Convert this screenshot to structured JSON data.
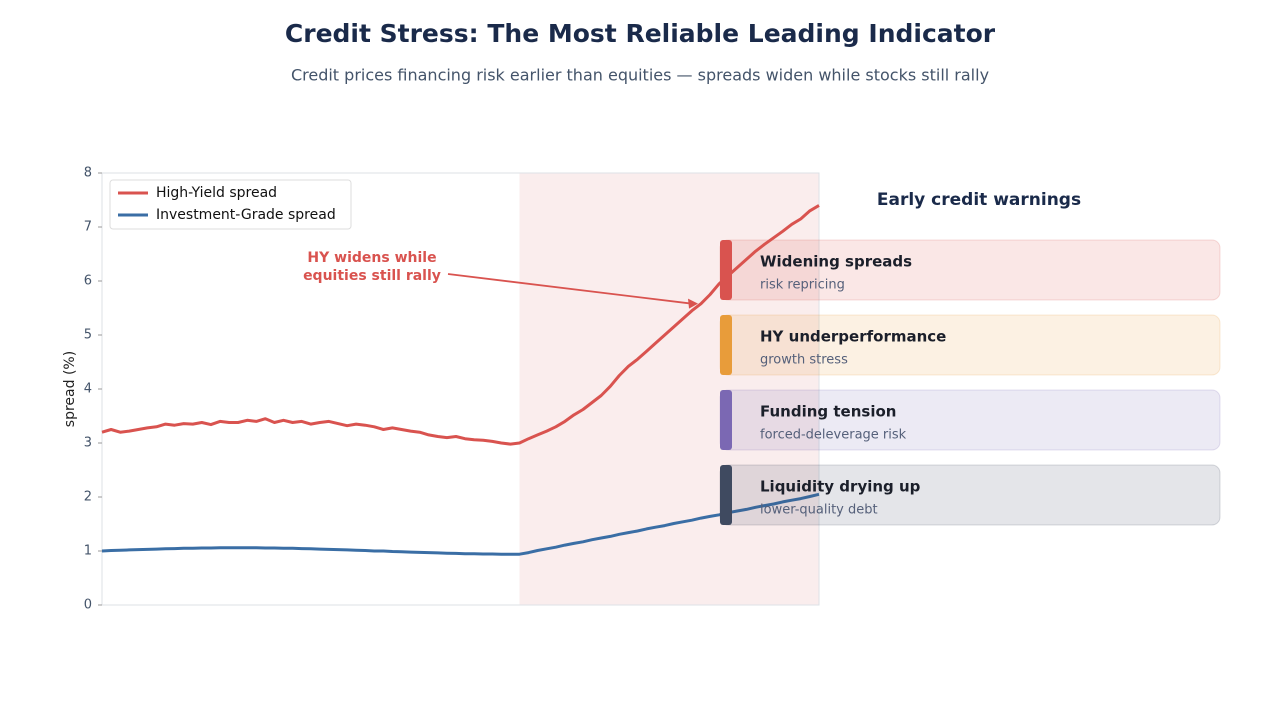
{
  "chart_data": {
    "type": "line",
    "title": "Credit Stress: The Most Reliable Leading Indicator",
    "subtitle": "Credit prices financing risk earlier than equities — spreads widen while stocks still rally",
    "ylabel": "spread (%)",
    "ylim": [
      0,
      8
    ],
    "yticks": [
      0,
      1,
      2,
      3,
      4,
      5,
      6,
      7,
      8
    ],
    "highlight": {
      "from": 46,
      "to": 79,
      "color": "#f3d6d8"
    },
    "annotation": {
      "lines": [
        "HY widens while",
        "equities still rally"
      ],
      "color": "#d9534f"
    },
    "legend": "upper left",
    "series": [
      {
        "name": "High-Yield spread",
        "color": "#d9534f",
        "values": [
          3.2,
          3.25,
          3.2,
          3.22,
          3.25,
          3.28,
          3.3,
          3.35,
          3.33,
          3.36,
          3.35,
          3.38,
          3.34,
          3.4,
          3.38,
          3.38,
          3.42,
          3.4,
          3.45,
          3.38,
          3.42,
          3.38,
          3.4,
          3.35,
          3.38,
          3.4,
          3.36,
          3.32,
          3.35,
          3.33,
          3.3,
          3.25,
          3.28,
          3.25,
          3.22,
          3.2,
          3.15,
          3.12,
          3.1,
          3.12,
          3.08,
          3.06,
          3.05,
          3.03,
          3.0,
          2.98,
          3.0,
          3.08,
          3.15,
          3.22,
          3.3,
          3.4,
          3.52,
          3.62,
          3.75,
          3.88,
          4.05,
          4.25,
          4.42,
          4.55,
          4.7,
          4.85,
          5.0,
          5.15,
          5.3,
          5.45,
          5.58,
          5.75,
          5.95,
          6.1,
          6.25,
          6.4,
          6.55,
          6.68,
          6.8,
          6.92,
          7.05,
          7.15,
          7.3,
          7.4
        ]
      },
      {
        "name": "Investment-Grade spread",
        "color": "#3a6ea5",
        "values": [
          1.0,
          1.01,
          1.015,
          1.02,
          1.025,
          1.03,
          1.035,
          1.04,
          1.045,
          1.05,
          1.05,
          1.055,
          1.055,
          1.06,
          1.06,
          1.06,
          1.06,
          1.06,
          1.055,
          1.055,
          1.05,
          1.05,
          1.045,
          1.04,
          1.035,
          1.03,
          1.025,
          1.02,
          1.015,
          1.01,
          1.0,
          1.0,
          0.99,
          0.985,
          0.98,
          0.975,
          0.97,
          0.965,
          0.96,
          0.955,
          0.95,
          0.95,
          0.945,
          0.945,
          0.94,
          0.94,
          0.94,
          0.97,
          1.01,
          1.04,
          1.07,
          1.11,
          1.14,
          1.17,
          1.21,
          1.24,
          1.27,
          1.31,
          1.34,
          1.37,
          1.41,
          1.44,
          1.47,
          1.51,
          1.54,
          1.57,
          1.61,
          1.64,
          1.67,
          1.71,
          1.74,
          1.77,
          1.81,
          1.84,
          1.87,
          1.91,
          1.94,
          1.97,
          2.01,
          2.05
        ]
      }
    ]
  },
  "panel": {
    "title": "Early credit warnings",
    "items": [
      {
        "title": "Widening spreads",
        "subtitle": "risk repricing",
        "color": "#d9534f"
      },
      {
        "title": "HY underperformance",
        "subtitle": "growth stress",
        "color": "#e89c3a"
      },
      {
        "title": "Funding tension",
        "subtitle": "forced-deleverage risk",
        "color": "#7b68b3"
      },
      {
        "title": "Liquidity drying up",
        "subtitle": "lower-quality debt",
        "color": "#3f4a60"
      }
    ]
  }
}
